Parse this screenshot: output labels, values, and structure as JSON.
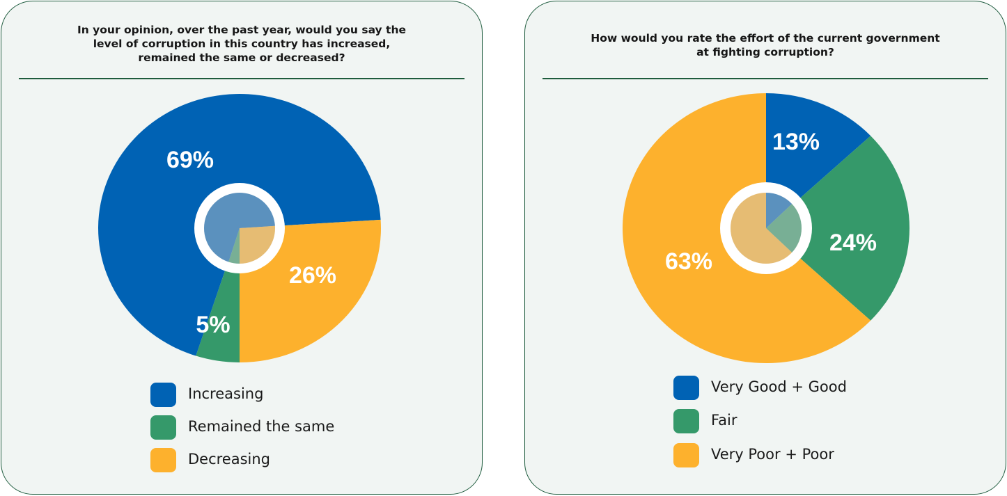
{
  "chart_data": [
    {
      "type": "pie",
      "title": "In your opinion, over the past year, would you say the level of corruption in this country has increased, remained the same or decreased?",
      "title_lines": [
        "In your opinion, over the past year, would you say the",
        "level of corruption in this country has increased,",
        "remained the same or decreased?"
      ],
      "categories": [
        "Increasing",
        "Remained the same",
        "Decreasing"
      ],
      "values": [
        69,
        5,
        26
      ],
      "labels": [
        "69%",
        "5%",
        "26%"
      ],
      "colors": [
        "#0062b4",
        "#35996a",
        "#fdb12d"
      ],
      "legend_position": "bottom"
    },
    {
      "type": "pie",
      "title": "How would you rate the effort of the current government at fighting corruption?",
      "title_lines": [
        "How would you rate the effort of the current government",
        "at fighting corruption?"
      ],
      "categories": [
        "Very Good + Good",
        "Fair",
        "Very Poor + Poor"
      ],
      "values": [
        13,
        24,
        63
      ],
      "labels": [
        "13%",
        "24%",
        "63%"
      ],
      "colors": [
        "#0062b4",
        "#35996a",
        "#fdb12d"
      ],
      "legend_position": "bottom"
    }
  ]
}
